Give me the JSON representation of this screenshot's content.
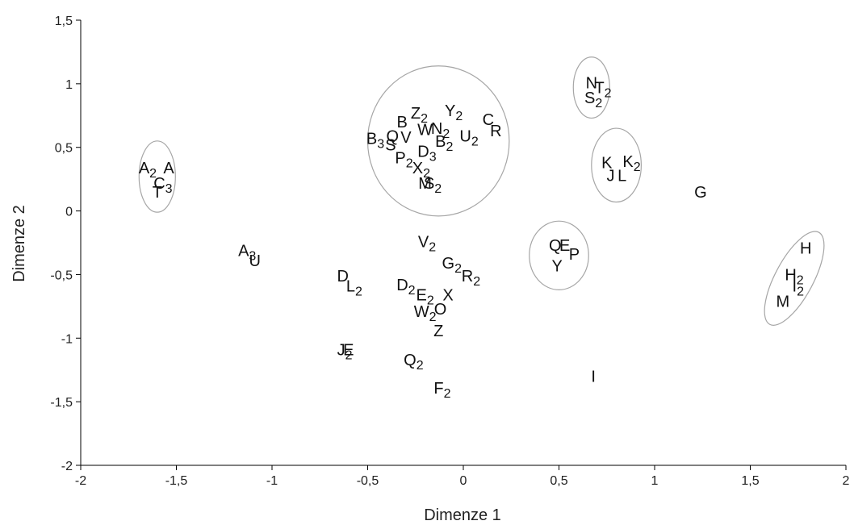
{
  "chart_data": {
    "type": "scatter",
    "title": "",
    "xlabel": "Dimenze 1",
    "ylabel": "Dimenze 2",
    "xlim": [
      -2,
      2
    ],
    "ylim": [
      -2,
      1.5
    ],
    "x_ticks": [
      -2,
      -1.5,
      -1,
      -0.5,
      0,
      0.5,
      1,
      1.5,
      2
    ],
    "x_tick_labels": [
      "-2",
      "-1,5",
      "-1",
      "-0,5",
      "0",
      "0,5",
      "1",
      "1,5",
      "2"
    ],
    "y_ticks": [
      -2,
      -1.5,
      -1,
      -0.5,
      0,
      0.5,
      1,
      1.5
    ],
    "y_tick_labels": [
      "-2",
      "-1,5",
      "-1",
      "-0,5",
      "0",
      "0,5",
      "1",
      "1,5"
    ],
    "grid": false,
    "points": [
      {
        "label": "A2",
        "x": -1.65,
        "y": 0.34
      },
      {
        "label": "A",
        "x": -1.54,
        "y": 0.34
      },
      {
        "label": "C3",
        "x": -1.57,
        "y": 0.22
      },
      {
        "label": "T",
        "x": -1.6,
        "y": 0.15
      },
      {
        "label": "A3",
        "x": -1.13,
        "y": -0.31
      },
      {
        "label": "U",
        "x": -1.09,
        "y": -0.39
      },
      {
        "label": "D",
        "x": -0.63,
        "y": -0.51
      },
      {
        "label": "L2",
        "x": -0.57,
        "y": -0.59
      },
      {
        "label": "J2",
        "x": -0.62,
        "y": -1.09
      },
      {
        "label": "E",
        "x": -0.6,
        "y": -1.09
      },
      {
        "label": "D2",
        "x": -0.3,
        "y": -0.58
      },
      {
        "label": "E2",
        "x": -0.2,
        "y": -0.66
      },
      {
        "label": "X",
        "x": -0.08,
        "y": -0.66
      },
      {
        "label": "W2",
        "x": -0.2,
        "y": -0.79
      },
      {
        "label": "O",
        "x": -0.12,
        "y": -0.77
      },
      {
        "label": "Z",
        "x": -0.13,
        "y": -0.94
      },
      {
        "label": "Q2",
        "x": -0.26,
        "y": -1.17
      },
      {
        "label": "F2",
        "x": -0.11,
        "y": -1.39
      },
      {
        "label": "V2",
        "x": -0.19,
        "y": -0.24
      },
      {
        "label": "G2",
        "x": -0.06,
        "y": -0.41
      },
      {
        "label": "R2",
        "x": 0.04,
        "y": -0.51
      },
      {
        "label": "B",
        "x": -0.32,
        "y": 0.7
      },
      {
        "label": "Z2",
        "x": -0.23,
        "y": 0.77
      },
      {
        "label": "Y2",
        "x": -0.05,
        "y": 0.79
      },
      {
        "label": "W",
        "x": -0.2,
        "y": 0.64
      },
      {
        "label": "N2",
        "x": -0.12,
        "y": 0.65
      },
      {
        "label": "C",
        "x": 0.13,
        "y": 0.72
      },
      {
        "label": "R",
        "x": 0.17,
        "y": 0.63
      },
      {
        "label": "U2",
        "x": 0.03,
        "y": 0.59
      },
      {
        "label": "B3",
        "x": -0.46,
        "y": 0.57
      },
      {
        "label": "Q",
        "x": -0.37,
        "y": 0.59
      },
      {
        "label": "V",
        "x": -0.3,
        "y": 0.58
      },
      {
        "label": "S",
        "x": -0.38,
        "y": 0.52
      },
      {
        "label": "B2",
        "x": -0.1,
        "y": 0.55
      },
      {
        "label": "D3",
        "x": -0.19,
        "y": 0.47
      },
      {
        "label": "P2",
        "x": -0.31,
        "y": 0.42
      },
      {
        "label": "X2",
        "x": -0.22,
        "y": 0.34
      },
      {
        "label": "M",
        "x": -0.2,
        "y": 0.22
      },
      {
        "label": "S2",
        "x": -0.16,
        "y": 0.22
      },
      {
        "label": "N",
        "x": 0.67,
        "y": 1.01
      },
      {
        "label": "T2",
        "x": 0.73,
        "y": 0.97
      },
      {
        "label": "S2",
        "x": 0.68,
        "y": 0.89
      },
      {
        "label": "K",
        "x": 0.75,
        "y": 0.38
      },
      {
        "label": "K2",
        "x": 0.88,
        "y": 0.39
      },
      {
        "label": "J",
        "x": 0.77,
        "y": 0.28
      },
      {
        "label": "L",
        "x": 0.83,
        "y": 0.28
      },
      {
        "label": "G",
        "x": 1.24,
        "y": 0.15
      },
      {
        "label": "Q",
        "x": 0.48,
        "y": -0.27
      },
      {
        "label": "E",
        "x": 0.53,
        "y": -0.27
      },
      {
        "label": "P",
        "x": 0.58,
        "y": -0.34
      },
      {
        "label": "Y",
        "x": 0.49,
        "y": -0.43
      },
      {
        "label": "H",
        "x": 1.79,
        "y": -0.29
      },
      {
        "label": "H2",
        "x": 1.73,
        "y": -0.5
      },
      {
        "label": "I2",
        "x": 1.75,
        "y": -0.59
      },
      {
        "label": "M",
        "x": 1.67,
        "y": -0.71
      },
      {
        "label": "I",
        "x": 0.68,
        "y": -1.3
      }
    ],
    "clusters": [
      {
        "cx": -1.6,
        "cy": 0.27,
        "rx": 0.095,
        "ry": 0.28
      },
      {
        "cx": -0.13,
        "cy": 0.55,
        "rx": 0.37,
        "ry": 0.59
      },
      {
        "cx": 0.67,
        "cy": 0.97,
        "rx": 0.095,
        "ry": 0.24
      },
      {
        "cx": 0.8,
        "cy": 0.36,
        "rx": 0.13,
        "ry": 0.29
      },
      {
        "cx": 0.5,
        "cy": -0.35,
        "rx": 0.155,
        "ry": 0.27
      },
      {
        "cx": 1.73,
        "cy": -0.53,
        "rx": 0.1,
        "ry": 0.41,
        "rotate": 28
      }
    ]
  }
}
